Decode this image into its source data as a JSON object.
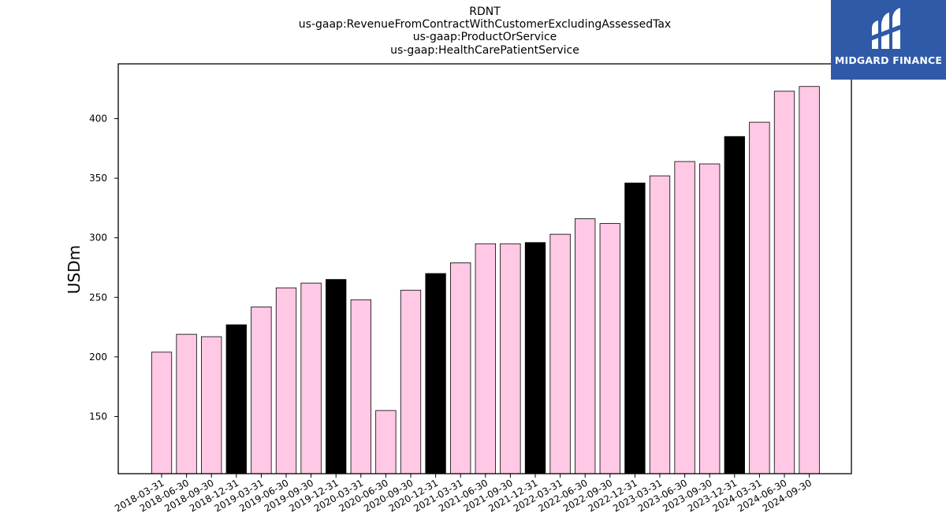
{
  "chart_data": {
    "type": "bar",
    "title_lines": [
      "RDNT",
      "us-gaap:RevenueFromContractWithCustomerExcludingAssessedTax",
      "us-gaap:ProductOrService",
      "us-gaap:HealthCarePatientService"
    ],
    "xlabel": "",
    "ylabel": "USDm",
    "categories": [
      "2018-03-31",
      "2018-06-30",
      "2018-09-30",
      "2018-12-31",
      "2019-03-31",
      "2019-06-30",
      "2019-09-30",
      "2019-12-31",
      "2020-03-31",
      "2020-06-30",
      "2020-09-30",
      "2020-12-31",
      "2021-03-31",
      "2021-06-30",
      "2021-09-30",
      "2021-12-31",
      "2022-03-31",
      "2022-06-30",
      "2022-09-30",
      "2022-12-31",
      "2023-03-31",
      "2023-06-30",
      "2023-09-30",
      "2023-12-31",
      "2024-03-31",
      "2024-06-30",
      "2024-09-30"
    ],
    "values": [
      204,
      219,
      217,
      227,
      242,
      258,
      262,
      265,
      248,
      155,
      256,
      270,
      279,
      295,
      295,
      296,
      303,
      316,
      312,
      346,
      352,
      364,
      362,
      385,
      397,
      423,
      427
    ],
    "ylim": [
      102,
      446
    ],
    "yticks": [
      150,
      200,
      250,
      300,
      350,
      400
    ],
    "grid": false,
    "colors": {
      "quarter": "#ffc8e4",
      "year_end": "#000000",
      "edge": "#000000"
    }
  },
  "logo": {
    "text": "MIDGARD FINANCE",
    "background": "#2f5aa8"
  }
}
